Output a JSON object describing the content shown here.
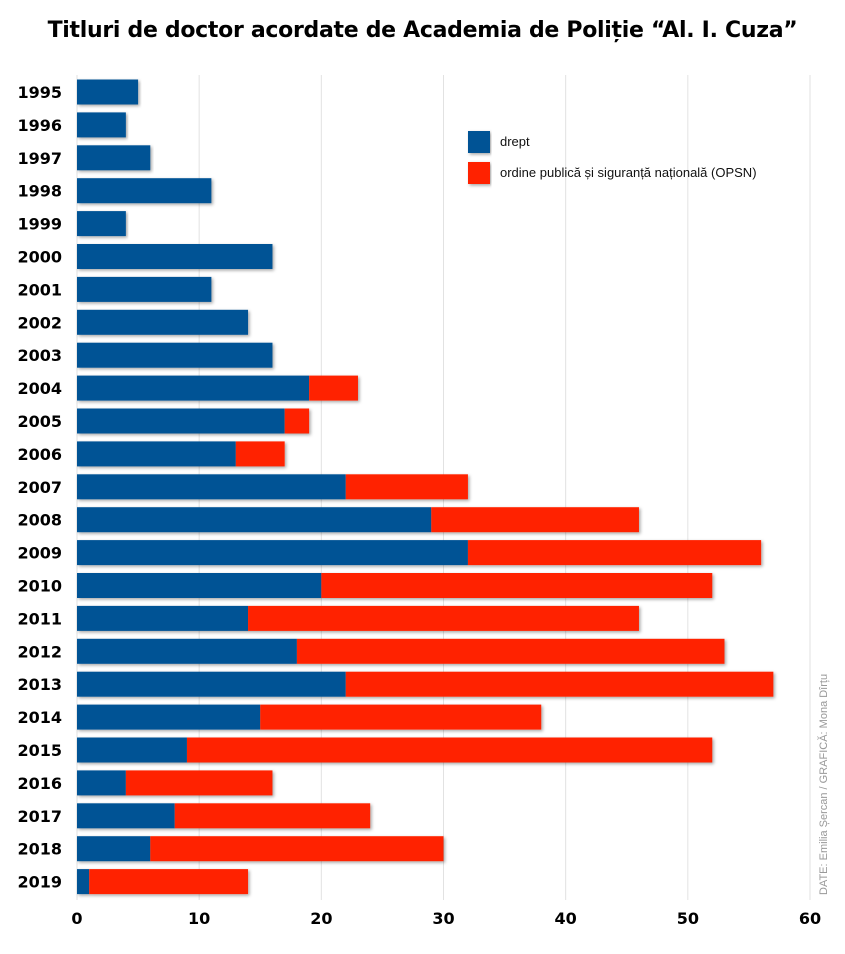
{
  "chart_data": {
    "type": "bar",
    "orientation": "horizontal",
    "stacked": true,
    "title": "Titluri de doctor acordate de Academia de Poliție “Al. I. Cuza”",
    "xlabel": "",
    "ylabel": "",
    "xlim": [
      0,
      60
    ],
    "xticks": [
      0,
      10,
      20,
      30,
      40,
      50,
      60
    ],
    "grid": true,
    "legend_position": "top-right",
    "categories": [
      "1995",
      "1996",
      "1997",
      "1998",
      "1999",
      "2000",
      "2001",
      "2002",
      "2003",
      "2004",
      "2005",
      "2006",
      "2007",
      "2008",
      "2009",
      "2010",
      "2011",
      "2012",
      "2013",
      "2014",
      "2015",
      "2016",
      "2017",
      "2018",
      "2019"
    ],
    "series": [
      {
        "name": "drept",
        "color": "#005395",
        "values": [
          5,
          4,
          6,
          11,
          4,
          16,
          11,
          14,
          16,
          19,
          17,
          13,
          22,
          29,
          32,
          20,
          14,
          18,
          22,
          15,
          9,
          4,
          8,
          6,
          1
        ]
      },
      {
        "name": "ordine publică și siguranță națională (OPSN)",
        "color": "#ff2400",
        "values": [
          0,
          0,
          0,
          0,
          0,
          0,
          0,
          0,
          0,
          4,
          2,
          4,
          10,
          17,
          24,
          32,
          32,
          35,
          35,
          23,
          43,
          12,
          16,
          24,
          13
        ]
      }
    ],
    "credit": "DATE: Emilia Șercan / GRAFICĂ: Mona Dîrțu"
  }
}
